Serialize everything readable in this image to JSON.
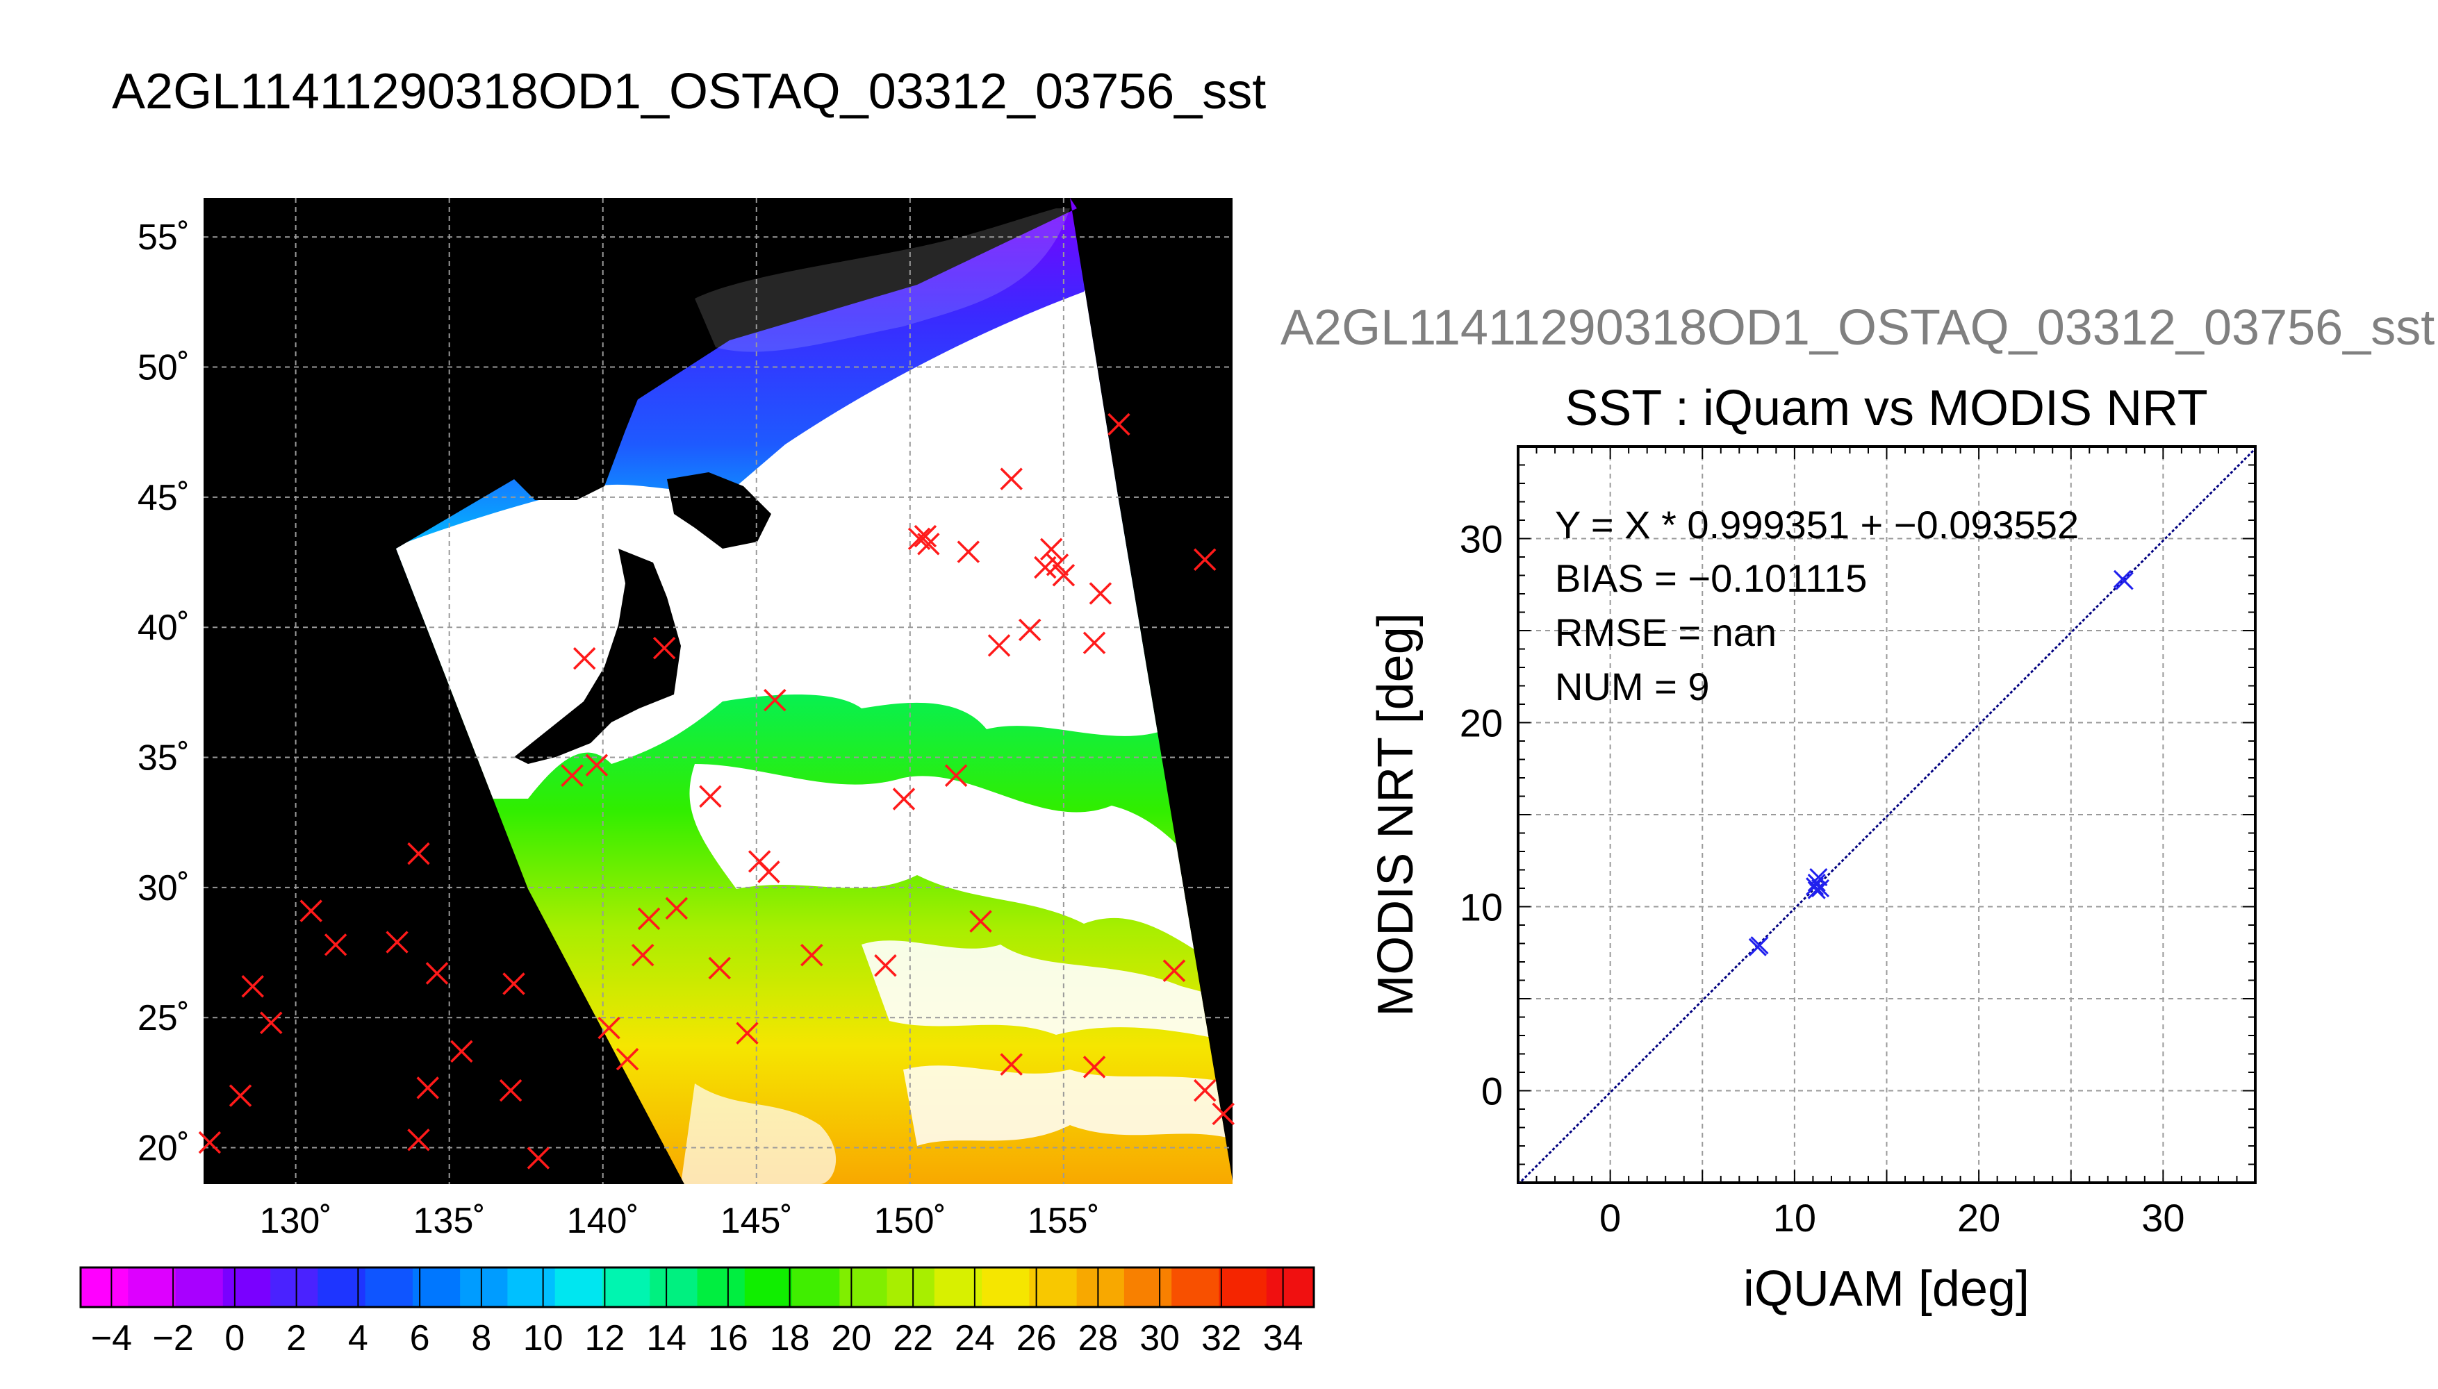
{
  "main_title": "A2GL11411290318OD1_OSTAQ_03312_03756_sst",
  "scatter_header": "A2GL11411290318OD1_OSTAQ_03312_03756_sst",
  "colors": {
    "map_background": "#000000",
    "land": "#000000",
    "cloud": "#ffffff",
    "marker_map": "#ff1a1a",
    "marker_scatter": "#2020ee",
    "fit_line": "#000080",
    "grid": "#9a9a9a"
  },
  "chart_data": [
    {
      "type": "map",
      "lon_ticks": [
        "130˚",
        "135˚",
        "140˚",
        "145˚",
        "150˚",
        "155˚"
      ],
      "lat_ticks": [
        "20˚",
        "25˚",
        "30˚",
        "35˚",
        "40˚",
        "45˚",
        "50˚",
        "55˚"
      ],
      "lon_range": [
        127,
        160.5
      ],
      "lat_range": [
        18.6,
        56.5
      ],
      "grid": true,
      "markers": [
        {
          "lon": 127.2,
          "lat": 20.2
        },
        {
          "lon": 128.2,
          "lat": 22.0
        },
        {
          "lon": 128.6,
          "lat": 26.2
        },
        {
          "lon": 129.2,
          "lat": 24.8
        },
        {
          "lon": 130.5,
          "lat": 29.1
        },
        {
          "lon": 131.3,
          "lat": 27.8
        },
        {
          "lon": 133.3,
          "lat": 27.9
        },
        {
          "lon": 134.0,
          "lat": 31.3
        },
        {
          "lon": 134.6,
          "lat": 26.7
        },
        {
          "lon": 134.0,
          "lat": 20.3
        },
        {
          "lon": 134.3,
          "lat": 22.3
        },
        {
          "lon": 135.4,
          "lat": 23.7
        },
        {
          "lon": 137.1,
          "lat": 26.3
        },
        {
          "lon": 137.0,
          "lat": 22.2
        },
        {
          "lon": 137.9,
          "lat": 19.6
        },
        {
          "lon": 139.0,
          "lat": 34.3
        },
        {
          "lon": 139.4,
          "lat": 38.8
        },
        {
          "lon": 139.8,
          "lat": 34.7
        },
        {
          "lon": 140.2,
          "lat": 24.6
        },
        {
          "lon": 140.8,
          "lat": 23.4
        },
        {
          "lon": 141.3,
          "lat": 27.4
        },
        {
          "lon": 141.5,
          "lat": 28.8
        },
        {
          "lon": 142.0,
          "lat": 39.2
        },
        {
          "lon": 142.4,
          "lat": 29.2
        },
        {
          "lon": 143.5,
          "lat": 33.5
        },
        {
          "lon": 143.8,
          "lat": 26.9
        },
        {
          "lon": 144.7,
          "lat": 24.4
        },
        {
          "lon": 145.1,
          "lat": 31.0
        },
        {
          "lon": 145.4,
          "lat": 30.6
        },
        {
          "lon": 145.6,
          "lat": 37.2
        },
        {
          "lon": 146.8,
          "lat": 27.4
        },
        {
          "lon": 149.2,
          "lat": 27.0
        },
        {
          "lon": 149.8,
          "lat": 33.4
        },
        {
          "lon": 150.3,
          "lat": 43.4
        },
        {
          "lon": 150.6,
          "lat": 43.2
        },
        {
          "lon": 150.5,
          "lat": 43.5
        },
        {
          "lon": 151.5,
          "lat": 34.3
        },
        {
          "lon": 151.9,
          "lat": 42.9
        },
        {
          "lon": 152.3,
          "lat": 28.7
        },
        {
          "lon": 152.9,
          "lat": 39.3
        },
        {
          "lon": 153.3,
          "lat": 23.2
        },
        {
          "lon": 153.3,
          "lat": 45.7
        },
        {
          "lon": 153.9,
          "lat": 39.9
        },
        {
          "lon": 154.4,
          "lat": 42.3
        },
        {
          "lon": 154.6,
          "lat": 43.0
        },
        {
          "lon": 154.8,
          "lat": 42.4
        },
        {
          "lon": 155.0,
          "lat": 42.0
        },
        {
          "lon": 156.0,
          "lat": 39.4
        },
        {
          "lon": 156.0,
          "lat": 23.1
        },
        {
          "lon": 156.2,
          "lat": 41.3
        },
        {
          "lon": 156.8,
          "lat": 47.8
        },
        {
          "lon": 158.6,
          "lat": 26.8
        },
        {
          "lon": 159.6,
          "lat": 42.6
        },
        {
          "lon": 159.6,
          "lat": 22.2
        },
        {
          "lon": 160.2,
          "lat": 21.3
        }
      ],
      "colorbar": {
        "ticks": [
          "−4",
          "−2",
          "0",
          "2",
          "4",
          "6",
          "8",
          "10",
          "12",
          "14",
          "16",
          "18",
          "20",
          "22",
          "24",
          "26",
          "28",
          "30",
          "32",
          "34"
        ],
        "range": [
          -5,
          35
        ],
        "step": 2,
        "colors": [
          "#ff00ff",
          "#dd00ff",
          "#a800ff",
          "#7a00ff",
          "#4a22ff",
          "#1e35ff",
          "#0f55ff",
          "#0077ff",
          "#009cff",
          "#00c0ff",
          "#00e6f0",
          "#00f5b0",
          "#00f080",
          "#00ee40",
          "#10ee00",
          "#40ee00",
          "#80ee00",
          "#a8ee00",
          "#d8f000",
          "#f5e600",
          "#f8c800",
          "#f8a800",
          "#f88000",
          "#f85000",
          "#f52500",
          "#f01010"
        ]
      }
    },
    {
      "type": "scatter",
      "title": "SST : iQuam vs MODIS NRT",
      "xlabel": "iQUAM [deg]",
      "ylabel": "MODIS NRT [deg]",
      "xlim": [
        -5,
        35
      ],
      "ylim": [
        -5,
        35
      ],
      "xticks": [
        0,
        10,
        20,
        30
      ],
      "yticks": [
        0,
        10,
        20,
        30
      ],
      "grid": true,
      "annotations": [
        "Y = X * 0.999351 + −0.093552",
        "BIAS = −0.101115",
        "RMSE = nan",
        "NUM = 9"
      ],
      "fit": {
        "slope": 0.999351,
        "intercept": -0.093552
      },
      "points": [
        {
          "x": 8.0,
          "y": 7.8
        },
        {
          "x": 8.1,
          "y": 7.9
        },
        {
          "x": 11.1,
          "y": 11.1
        },
        {
          "x": 11.2,
          "y": 10.9
        },
        {
          "x": 11.3,
          "y": 11.6
        },
        {
          "x": 11.4,
          "y": 11.0
        },
        {
          "x": 27.8,
          "y": 27.8
        },
        {
          "x": 27.9,
          "y": 27.7
        },
        {
          "x": 11.2,
          "y": 11.3
        }
      ]
    }
  ]
}
